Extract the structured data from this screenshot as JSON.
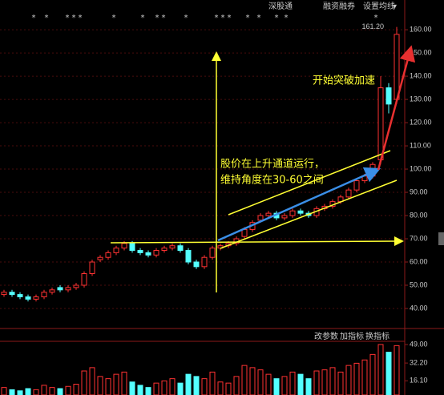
{
  "chart_data": {
    "type": "candlestick",
    "toolbar": [
      "深股通",
      "融资融券",
      "设置均线"
    ],
    "markers": [
      "*",
      "*",
      "*",
      "*",
      "*",
      "*",
      "*",
      "*",
      "*",
      "*",
      "*",
      "*",
      "*",
      "*",
      "*",
      "*",
      "*",
      "*"
    ],
    "annotations": [
      "开始突破加速",
      "股价在上升通道运行，",
      "维持角度在30-60之间"
    ],
    "max_label": {
      "value": 161.2,
      "label": "161.20"
    },
    "open": [
      46,
      47,
      46,
      45,
      44,
      45,
      47,
      49,
      48,
      49,
      50,
      55,
      61,
      62,
      64,
      66,
      68,
      65,
      64,
      63,
      65,
      66,
      67,
      65,
      60,
      58,
      62,
      66,
      67,
      68,
      71,
      74,
      78,
      80,
      81,
      79,
      80,
      82,
      81,
      80,
      83,
      84,
      86,
      88,
      91,
      95,
      97,
      104,
      135,
      130
    ],
    "high": [
      48,
      48,
      47,
      46,
      46,
      48,
      49,
      50,
      50,
      51,
      56,
      61,
      63,
      65,
      67,
      69,
      69,
      66,
      65,
      66,
      67,
      68,
      68,
      66,
      61,
      63,
      67,
      68,
      69,
      71,
      75,
      78,
      81,
      82,
      82,
      81,
      83,
      83,
      82,
      84,
      85,
      87,
      89,
      92,
      96,
      98,
      103,
      140,
      137,
      161.2
    ],
    "low": [
      45,
      45,
      44,
      43,
      43,
      44,
      46,
      47,
      47,
      48,
      49,
      54,
      60,
      61,
      63,
      65,
      64,
      63,
      62,
      62,
      64,
      65,
      64,
      59,
      57,
      57,
      61,
      65,
      66,
      67,
      70,
      73,
      77,
      79,
      78,
      78,
      79,
      80,
      79,
      79,
      82,
      83,
      85,
      87,
      90,
      94,
      96,
      102,
      124,
      128
    ],
    "close": [
      47,
      46,
      45,
      44,
      45,
      47,
      48,
      48,
      49,
      50,
      55,
      60,
      62,
      64,
      66,
      68,
      65,
      64,
      63,
      65,
      66,
      67,
      65,
      60,
      58,
      62,
      66,
      67,
      68,
      70,
      74,
      77,
      80,
      81,
      79,
      80,
      82,
      81,
      80,
      83,
      84,
      86,
      88,
      91,
      95,
      97,
      102,
      135,
      128,
      158
    ],
    "up_color": "#ff3232",
    "down_color": "#54ffff",
    "ylim": [
      33.1,
      165.9
    ],
    "yticks": [
      {
        "value": 40,
        "label": "40.00"
      },
      {
        "value": 50,
        "label": "50.00"
      },
      {
        "value": 60,
        "label": "60.00"
      },
      {
        "value": 70,
        "label": "70.00"
      },
      {
        "value": 80,
        "label": "80.00"
      },
      {
        "value": 90,
        "label": "90.00"
      },
      {
        "value": 100,
        "label": "100.00"
      },
      {
        "value": 110,
        "label": "110.00"
      },
      {
        "value": 120,
        "label": "120.00"
      },
      {
        "value": 130,
        "label": "130.00"
      },
      {
        "value": 140,
        "label": "140.00"
      },
      {
        "value": 150,
        "label": "150.00"
      },
      {
        "value": 160,
        "label": "160.00"
      }
    ],
    "grid": true,
    "lower_toolbar": [
      "改参数",
      "加指标",
      "换指标"
    ],
    "volume": [
      10,
      8,
      7,
      9,
      8,
      12,
      10,
      9,
      11,
      13,
      25,
      28,
      20,
      18,
      22,
      24,
      15,
      12,
      10,
      14,
      16,
      18,
      14,
      22,
      20,
      18,
      24,
      15,
      14,
      20,
      30,
      28,
      26,
      22,
      18,
      20,
      24,
      22,
      18,
      25,
      26,
      28,
      24,
      30,
      32,
      35,
      40,
      49,
      42,
      48
    ],
    "volume_ylim": [
      3.2,
      51.9
    ],
    "volume_ticks": [
      {
        "value": 49,
        "label": "49.00"
      },
      {
        "value": 32.2,
        "label": "32.20"
      },
      {
        "value": 16.1,
        "label": "16.10"
      }
    ]
  }
}
